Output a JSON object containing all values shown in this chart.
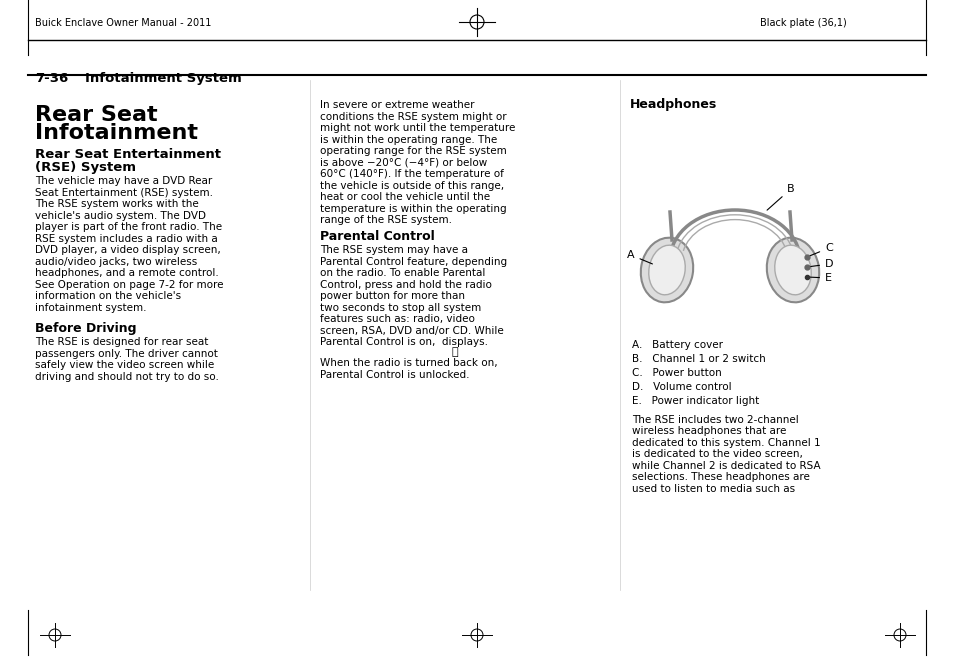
{
  "page_header_left": "Buick Enclave Owner Manual - 2011",
  "page_header_right": "Black plate (36,1)",
  "section_number": "7-36",
  "section_title": "Infotainment System",
  "main_title_line1": "Rear Seat",
  "main_title_line2": "Infotainment",
  "sub_title": "Rear Seat Entertainment\n(RSE) System",
  "col1_body": "The vehicle may have a DVD Rear\nSeat Entertainment (RSE) system.\nThe RSE system works with the\nvehicle's audio system. The DVD\nplayer is part of the front radio. The\nRSE system includes a radio with a\nDVD player, a video display screen,\naudio/video jacks, two wireless\nheadphones, and a remote control.\nSee Operation on page 7-2 for more\ninformation on the vehicle's\ninfotainment system.",
  "before_driving_title": "Before Driving",
  "before_driving_body": "The RSE is designed for rear seat\npassengers only. The driver cannot\nsafely view the video screen while\ndriving and should not try to do so.",
  "col2_intro": "In severe or extreme weather\nconditions the RSE system might or\nmight not work until the temperature\nis within the operating range. The\noperating range for the RSE system\nis above −20°C (−4°F) or below\n60°C (140°F). If the temperature of\nthe vehicle is outside of this range,\nheat or cool the vehicle until the\ntemperature is within the operating\nrange of the RSE system.",
  "parental_control_title": "Parental Control",
  "parental_control_body": "The RSE system may have a\nParental Control feature, depending\non the radio. To enable Parental\nControl, press and hold the radio\npower button for more than\ntwo seconds to stop all system\nfeatures such as: radio, video\nscreen, RSA, DVD and/or CD. While\nParental Control is on,  displays.",
  "parental_control_body2": "When the radio is turned back on,\nParental Control is unlocked.",
  "headphones_title": "Headphones",
  "headphone_labels": [
    "A.   Battery cover",
    "B.   Channel 1 or 2 switch",
    "C.   Power button",
    "D.   Volume control",
    "E.   Power indicator light"
  ],
  "col3_body": "The RSE includes two 2-channel\nwireless headphones that are\ndedicated to this system. Channel 1\nis dedicated to the video screen,\nwhile Channel 2 is dedicated to RSA\nselections. These headphones are\nused to listen to media such as",
  "bg_color": "#ffffff",
  "text_color": "#000000",
  "line_color": "#000000"
}
